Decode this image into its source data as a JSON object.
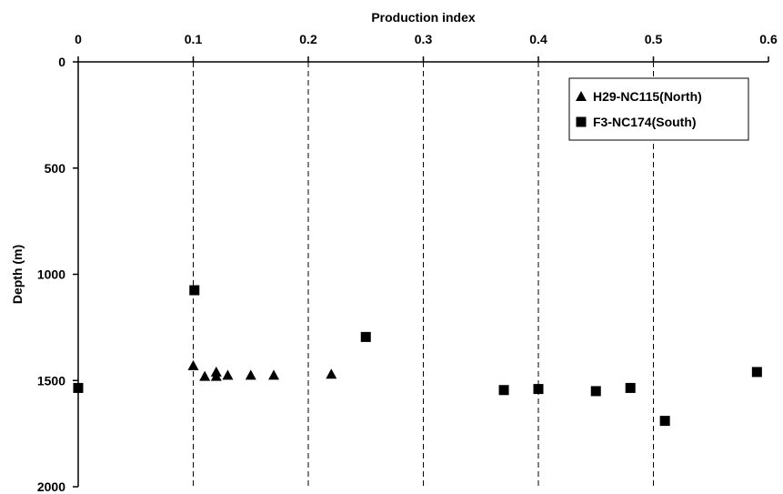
{
  "chart_data": {
    "type": "scatter",
    "title": "",
    "xlabel": "Production index",
    "ylabel": "Depth (m)",
    "xlim": [
      0,
      0.6
    ],
    "ylim": [
      0,
      2000
    ],
    "y_inverted": true,
    "x_axis_position": "top",
    "x_ticks": [
      "0",
      "0.1",
      "0.2",
      "0.3",
      "0.4",
      "0.5",
      "0.6"
    ],
    "y_ticks": [
      "0",
      "500",
      "1000",
      "1500",
      "2000"
    ],
    "grid": "vertical dashed",
    "legend_position": "top-right",
    "series": [
      {
        "name": "H29-NC115(North)",
        "marker": "triangle",
        "color": "#000000",
        "points": [
          {
            "x": 0.1,
            "y": 1430
          },
          {
            "x": 0.11,
            "y": 1480
          },
          {
            "x": 0.12,
            "y": 1460
          },
          {
            "x": 0.12,
            "y": 1480
          },
          {
            "x": 0.13,
            "y": 1475
          },
          {
            "x": 0.15,
            "y": 1475
          },
          {
            "x": 0.17,
            "y": 1475
          },
          {
            "x": 0.22,
            "y": 1470
          }
        ]
      },
      {
        "name": "F3-NC174(South)",
        "marker": "square",
        "color": "#000000",
        "points": [
          {
            "x": 0.0,
            "y": 1535
          },
          {
            "x": 0.101,
            "y": 1075
          },
          {
            "x": 0.25,
            "y": 1295
          },
          {
            "x": 0.37,
            "y": 1545
          },
          {
            "x": 0.4,
            "y": 1540
          },
          {
            "x": 0.45,
            "y": 1550
          },
          {
            "x": 0.48,
            "y": 1535
          },
          {
            "x": 0.51,
            "y": 1690
          },
          {
            "x": 0.59,
            "y": 1460
          }
        ]
      }
    ]
  }
}
